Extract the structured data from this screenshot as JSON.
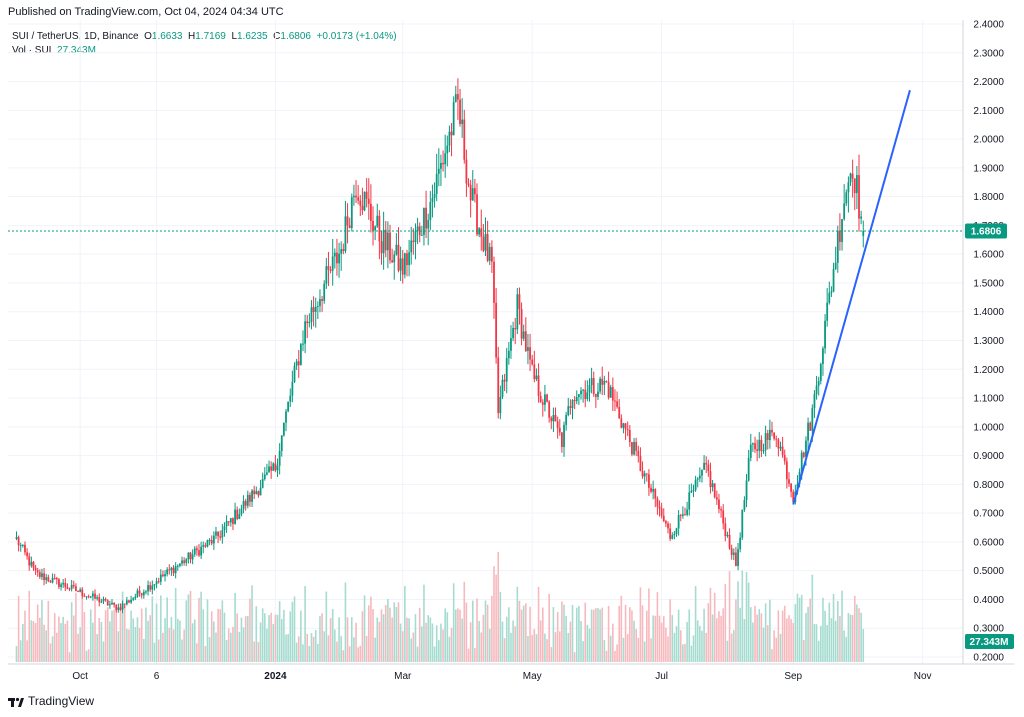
{
  "published_label": "Published on TradingView.com, Oct 04, 2024 04:34 UTC",
  "legend": {
    "symbol": "SUI / TetherUS, 1D, Binance",
    "open_key": "O",
    "open": "1.6633",
    "high_key": "H",
    "high": "1.7169",
    "low_key": "L",
    "low": "1.6235",
    "close_key": "C",
    "close": "1.6806",
    "change": "+0.0173 (+1.04%)",
    "vol_label": "Vol · SUI",
    "vol_value": "27.343M"
  },
  "brand": "TradingView",
  "colors": {
    "up": "#089981",
    "down": "#f23645",
    "up_vol": "#a6dbd0",
    "down_vol": "#f7b9bd",
    "trendline": "#2962ff",
    "price_line": "#089981"
  },
  "chart_data": {
    "type": "candlestick",
    "y_axis_position": "right",
    "y_ticks": [
      "2.4000",
      "2.3000",
      "2.2000",
      "2.1000",
      "2.0000",
      "1.9000",
      "1.8000",
      "1.7000",
      "1.6000",
      "1.5000",
      "1.4000",
      "1.3000",
      "1.2000",
      "1.1000",
      "1.0000",
      "0.9000",
      "0.8000",
      "0.7000",
      "0.6000",
      "0.5000",
      "0.4000",
      "0.3000",
      "0.2000"
    ],
    "ylim": [
      0.2,
      2.4
    ],
    "x_ticks": [
      "Oct",
      "6",
      "2024",
      "Mar",
      "May",
      "Jul",
      "Sep",
      "Nov"
    ],
    "last_price_label": "1.6806",
    "last_volume_label": "27.343M",
    "key_points": [
      {
        "date": "2023-09-01",
        "price": 0.61
      },
      {
        "date": "2023-09-10",
        "price": 0.49
      },
      {
        "date": "2023-10-19",
        "price": 0.37
      },
      {
        "date": "2023-12-05",
        "price": 0.62
      },
      {
        "date": "2024-01-01",
        "price": 0.86
      },
      {
        "date": "2024-01-06",
        "price": 1.04
      },
      {
        "date": "2024-01-15",
        "price": 1.35
      },
      {
        "date": "2024-02-01",
        "price": 1.62
      },
      {
        "date": "2024-02-08",
        "price": 1.85
      },
      {
        "date": "2024-02-20",
        "price": 1.65
      },
      {
        "date": "2024-03-01",
        "price": 1.55
      },
      {
        "date": "2024-03-15",
        "price": 1.8
      },
      {
        "date": "2024-03-27",
        "price": 2.12
      },
      {
        "date": "2024-04-02",
        "price": 1.8
      },
      {
        "date": "2024-04-12",
        "price": 1.55
      },
      {
        "date": "2024-04-15",
        "price": 1.05
      },
      {
        "date": "2024-04-24",
        "price": 1.42
      },
      {
        "date": "2024-05-01",
        "price": 1.18
      },
      {
        "date": "2024-05-15",
        "price": 0.95
      },
      {
        "date": "2024-05-20",
        "price": 1.12
      },
      {
        "date": "2024-06-05",
        "price": 1.15
      },
      {
        "date": "2024-06-20",
        "price": 0.88
      },
      {
        "date": "2024-07-05",
        "price": 0.62
      },
      {
        "date": "2024-07-22",
        "price": 0.86
      },
      {
        "date": "2024-08-05",
        "price": 0.52
      },
      {
        "date": "2024-08-12",
        "price": 0.92
      },
      {
        "date": "2024-08-24",
        "price": 0.98
      },
      {
        "date": "2024-09-01",
        "price": 0.76
      },
      {
        "date": "2024-09-10",
        "price": 1.05
      },
      {
        "date": "2024-09-25",
        "price": 1.8
      },
      {
        "date": "2024-09-29",
        "price": 1.92
      },
      {
        "date": "2024-10-04",
        "price": 1.68
      }
    ],
    "trendline": {
      "from": {
        "date": "2024-09-01",
        "price": 0.73
      },
      "to": {
        "date": "2024-10-26",
        "price": 2.17
      }
    }
  }
}
